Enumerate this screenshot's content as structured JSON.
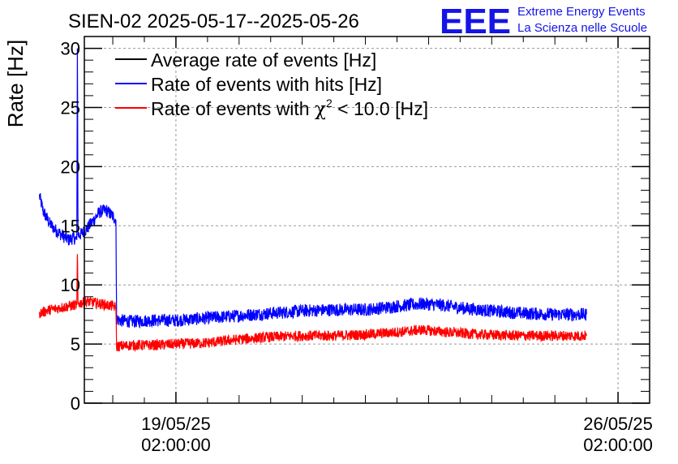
{
  "title": "SIEN-02 2025-05-17--2025-05-26",
  "logo": {
    "mark": "EEE",
    "line1": "Extreme Energy Events",
    "line2": "La Scienza nelle Scuole",
    "color": "#1414e6"
  },
  "chart_data": {
    "type": "line",
    "title": "SIEN-02 2025-05-17--2025-05-26",
    "xlabel": "",
    "ylabel": "Rate [Hz]",
    "ylim": [
      0,
      31
    ],
    "yticks": [
      0,
      5,
      10,
      15,
      20,
      25,
      30
    ],
    "xlim_days": [
      -1.45,
      7.5
    ],
    "xticks": [
      {
        "date": "19/05/25",
        "time": "02:00:00",
        "day": 0
      },
      {
        "date": "26/05/25",
        "time": "02:00:00",
        "day": 7
      }
    ],
    "grid": true,
    "legend_position": "top-left",
    "legend": [
      {
        "label": "Average rate of events [Hz]",
        "color": "#000000"
      },
      {
        "label": "Rate of events with hits [Hz]",
        "color": "#0000ff"
      },
      {
        "label_pre": "Rate of events with ",
        "label_chi": "χ",
        "label_sup": "2",
        "label_post": " < 10.0 [Hz]",
        "color": "#ff0000"
      }
    ],
    "series": [
      {
        "name": "Rate of events with hits [Hz]",
        "color": "#0000ff",
        "noise": 0.55,
        "points": [
          [
            -2.16,
            17.5
          ],
          [
            -2.1,
            16.2
          ],
          [
            -2.0,
            15.2
          ],
          [
            -1.9,
            14.6
          ],
          [
            -1.8,
            14.2
          ],
          [
            -1.7,
            13.8
          ],
          [
            -1.62,
            14.0
          ],
          [
            -1.57,
            13.8
          ],
          [
            -1.56,
            30.0
          ],
          [
            -1.55,
            14.2
          ],
          [
            -1.5,
            14.3
          ],
          [
            -1.4,
            14.8
          ],
          [
            -1.3,
            15.5
          ],
          [
            -1.2,
            16.2
          ],
          [
            -1.1,
            16.3
          ],
          [
            -1.0,
            15.8
          ],
          [
            -0.95,
            15.5
          ],
          [
            -0.94,
            7.2
          ],
          [
            -0.9,
            7.0
          ],
          [
            -0.7,
            6.9
          ],
          [
            -0.4,
            7.0
          ],
          [
            0.0,
            7.0
          ],
          [
            0.5,
            7.2
          ],
          [
            1.0,
            7.4
          ],
          [
            1.5,
            7.6
          ],
          [
            2.0,
            7.8
          ],
          [
            2.5,
            7.9
          ],
          [
            3.0,
            7.9
          ],
          [
            3.5,
            8.2
          ],
          [
            3.9,
            8.4
          ],
          [
            4.2,
            8.3
          ],
          [
            4.6,
            8.0
          ],
          [
            5.0,
            7.8
          ],
          [
            5.5,
            7.6
          ],
          [
            6.0,
            7.5
          ],
          [
            6.5,
            7.5
          ]
        ]
      },
      {
        "name": "Rate of events with χ2 < 10.0 [Hz]",
        "color": "#ff0000",
        "noise": 0.45,
        "points": [
          [
            -2.16,
            7.6
          ],
          [
            -2.0,
            7.9
          ],
          [
            -1.8,
            8.1
          ],
          [
            -1.6,
            8.3
          ],
          [
            -1.57,
            8.3
          ],
          [
            -1.56,
            12.6
          ],
          [
            -1.55,
            8.4
          ],
          [
            -1.4,
            8.6
          ],
          [
            -1.2,
            8.4
          ],
          [
            -1.0,
            8.2
          ],
          [
            -0.95,
            8.1
          ],
          [
            -0.94,
            4.8
          ],
          [
            -0.7,
            4.9
          ],
          [
            -0.4,
            4.9
          ],
          [
            0.0,
            5.0
          ],
          [
            0.5,
            5.1
          ],
          [
            1.0,
            5.4
          ],
          [
            1.5,
            5.6
          ],
          [
            2.0,
            5.7
          ],
          [
            2.5,
            5.7
          ],
          [
            3.0,
            5.8
          ],
          [
            3.5,
            6.0
          ],
          [
            3.9,
            6.2
          ],
          [
            4.3,
            6.0
          ],
          [
            4.8,
            5.8
          ],
          [
            5.5,
            5.7
          ],
          [
            6.0,
            5.7
          ],
          [
            6.5,
            5.7
          ]
        ]
      }
    ]
  }
}
